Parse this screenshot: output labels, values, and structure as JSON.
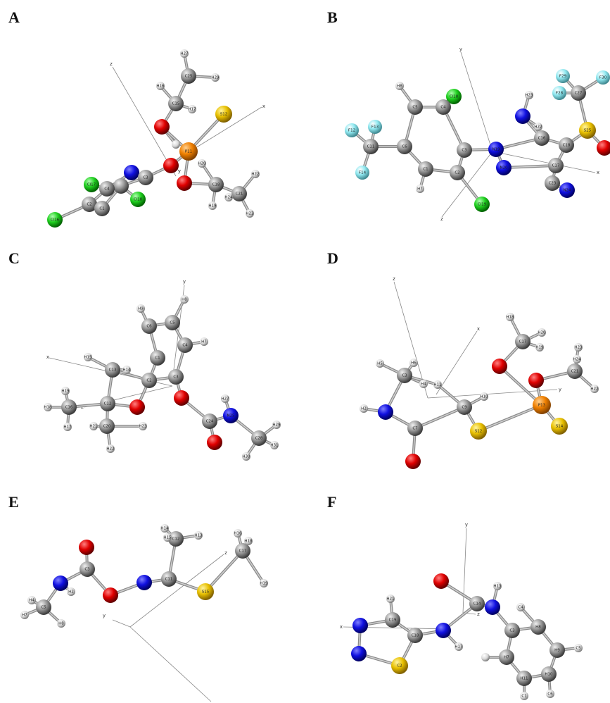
{
  "panels": [
    {
      "label": "A",
      "atoms": [
        "H27",
        "C25",
        "H29",
        "H16",
        "C15",
        "H17",
        "S12",
        "P11",
        "C3",
        "Cl17",
        "C4",
        "Cl18",
        "C2",
        "C1",
        "Cl16",
        "H20",
        "C18",
        "H19",
        "C21",
        "H22",
        "H24",
        "H23"
      ],
      "axes": [
        "z",
        "x",
        "y"
      ]
    },
    {
      "label": "B",
      "atoms": [
        "F29",
        "F30",
        "F28",
        "C27",
        "S25",
        "H23",
        "H22",
        "C16",
        "C18",
        "N19",
        "N20",
        "C17",
        "C23",
        "N24",
        "Cl18",
        "C4",
        "C5",
        "H8",
        "C6",
        "C3",
        "C2",
        "C1",
        "H7",
        "Cl19",
        "C11",
        "F12",
        "F13",
        "F14"
      ],
      "axes": [
        "y",
        "x",
        "z"
      ]
    },
    {
      "label": "C",
      "atoms": [
        "H8",
        "H9",
        "C6",
        "C5",
        "C4",
        "H7",
        "C1",
        "H15",
        "C13",
        "H14",
        "C2",
        "C3",
        "C12",
        "H19",
        "H18",
        "C16",
        "H17",
        "C20",
        "H21",
        "H23",
        "H22",
        "C24",
        "N25",
        "H27",
        "C28",
        "H29",
        "H31",
        "H30"
      ],
      "axes": [
        "y",
        "x",
        "z"
      ]
    },
    {
      "label": "D",
      "atoms": [
        "H5",
        "C3",
        "H6",
        "H4",
        "H11",
        "C9",
        "H10",
        "H2",
        "C7",
        "S12",
        "P13",
        "C17",
        "H18",
        "H20",
        "H19",
        "C21",
        "H23",
        "H24",
        "H22",
        "S14"
      ],
      "axes": [
        "z",
        "x",
        "y"
      ]
    },
    {
      "label": "E",
      "atoms": [
        "C3",
        "H2",
        "C5",
        "H4",
        "H7",
        "H8",
        "C11",
        "C12",
        "H14",
        "H15",
        "H13",
        "S15",
        "C17",
        "H16",
        "H18",
        "H19"
      ],
      "axes": [
        "z",
        "y"
      ]
    },
    {
      "label": "F",
      "atoms": [
        "C14",
        "H13",
        "H21",
        "C19",
        "C18",
        "H17",
        "C2",
        "C3",
        "H8",
        "C4",
        "H9",
        "C5",
        "H10",
        "C6",
        "H11",
        "C1",
        "H7"
      ],
      "axes": [
        "y",
        "x",
        "z"
      ]
    }
  ]
}
